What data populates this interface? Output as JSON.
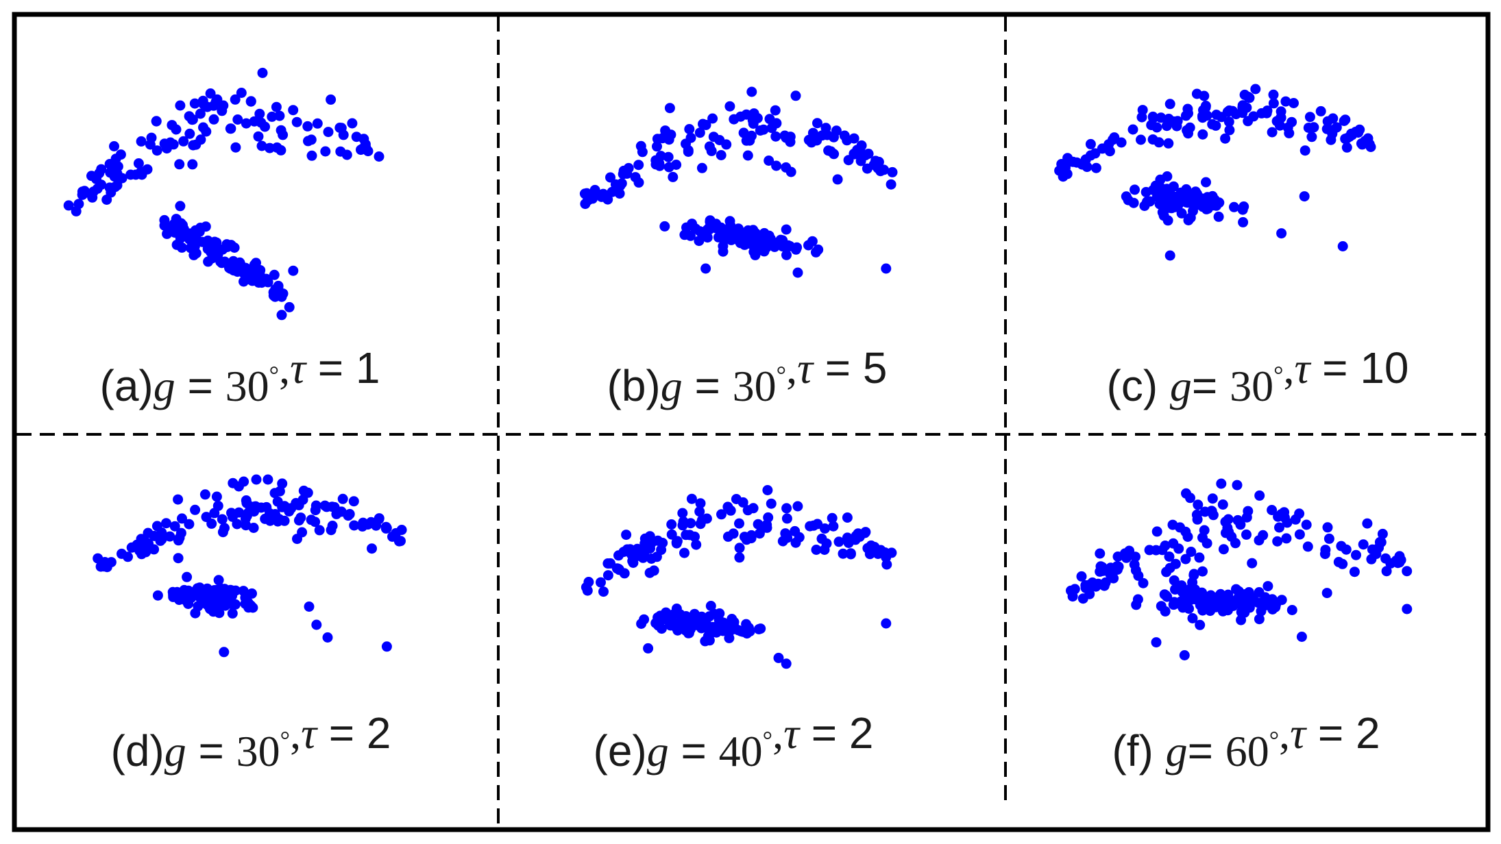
{
  "figure": {
    "frame_color": "#000000",
    "divider_color": "#000000",
    "point_color": "#0000ff"
  },
  "chart_data": [
    {
      "type": "scatter",
      "panel": "a",
      "caption": {
        "prefix": "(a)",
        "var1": "g",
        "eq1": " = ",
        "val1": "30",
        "deg": "°",
        "sep": ",",
        "var2": "τ",
        "eq2": " = ",
        "val2": "1"
      },
      "seed": 11,
      "clusters": [
        {
          "kind": "arc",
          "n": 120,
          "x0": 0.05,
          "x1": 0.88,
          "ypeak": 0.2,
          "yend": 0.55,
          "peak": 0.52,
          "spread": 0.045
        },
        {
          "kind": "line",
          "n": 95,
          "xa": 0.3,
          "ya": 0.59,
          "xb": 0.58,
          "yb": 0.86,
          "spread": 0.028
        }
      ],
      "extra": [
        [
          0.55,
          0.03
        ],
        [
          0.52,
          0.14
        ],
        [
          0.6,
          0.96
        ],
        [
          0.62,
          0.93
        ],
        [
          0.63,
          0.79
        ],
        [
          0.6,
          0.89
        ]
      ]
    },
    {
      "type": "scatter",
      "panel": "b",
      "caption": {
        "prefix": "(b)",
        "var1": "g",
        "eq1": " = ",
        "val1": "30",
        "deg": "°",
        "sep": ",",
        "var2": "τ",
        "eq2": " = ",
        "val2": "5"
      },
      "seed": 23,
      "clusters": [
        {
          "kind": "arc",
          "n": 125,
          "x0": 0.1,
          "x1": 0.9,
          "ypeak": 0.22,
          "yend": 0.58,
          "peak": 0.48,
          "spread": 0.05
        },
        {
          "kind": "blob",
          "n": 100,
          "cx": 0.5,
          "cy": 0.74,
          "rx": 0.14,
          "ry": 0.05,
          "rot": 0.3
        }
      ],
      "extra": [
        [
          0.53,
          0.03
        ],
        [
          0.88,
          0.89
        ],
        [
          0.65,
          0.91
        ],
        [
          0.41,
          0.89
        ],
        [
          0.62,
          0.7
        ]
      ]
    },
    {
      "type": "scatter",
      "panel": "c",
      "caption": {
        "prefix": "(c) ",
        "var1": "g",
        "eq1": "= ",
        "val1": "30",
        "deg": "°",
        "sep": ",",
        "var2": "τ",
        "eq2": " = ",
        "val2": "10"
      },
      "seed": 37,
      "clusters": [
        {
          "kind": "arc",
          "n": 125,
          "x0": 0.08,
          "x1": 0.9,
          "ypeak": 0.12,
          "yend": 0.45,
          "peak": 0.62,
          "spread": 0.05
        },
        {
          "kind": "blob",
          "n": 95,
          "cx": 0.4,
          "cy": 0.6,
          "rx": 0.11,
          "ry": 0.07,
          "rot": 0.25
        }
      ],
      "extra": [
        [
          0.72,
          0.58
        ],
        [
          0.82,
          0.85
        ],
        [
          0.66,
          0.78
        ],
        [
          0.37,
          0.9
        ],
        [
          0.56,
          0.72
        ]
      ]
    },
    {
      "type": "scatter",
      "panel": "d",
      "caption": {
        "prefix": "(d)",
        "var1": "g",
        "eq1": " = ",
        "val1": "30",
        "deg": "°",
        "sep": ",",
        "var2": "τ",
        "eq2": " = ",
        "val2": "2"
      },
      "seed": 41,
      "clusters": [
        {
          "kind": "arc",
          "n": 130,
          "x0": 0.08,
          "x1": 0.9,
          "ypeak": 0.15,
          "yend": 0.48,
          "peak": 0.6,
          "spread": 0.05
        },
        {
          "kind": "blob",
          "n": 100,
          "cx": 0.4,
          "cy": 0.65,
          "rx": 0.12,
          "ry": 0.06,
          "rot": 0.22
        }
      ],
      "extra": [
        [
          0.86,
          0.92
        ],
        [
          0.67,
          0.8
        ],
        [
          0.7,
          0.87
        ],
        [
          0.42,
          0.95
        ],
        [
          0.65,
          0.7
        ]
      ]
    },
    {
      "type": "scatter",
      "panel": "e",
      "caption": {
        "prefix": "(e)",
        "var1": "g",
        "eq1": " = ",
        "val1": "40",
        "deg": "°",
        "sep": ",",
        "var2": "τ",
        "eq2": " = ",
        "val2": "2"
      },
      "seed": 53,
      "clusters": [
        {
          "kind": "arc",
          "n": 130,
          "x0": 0.1,
          "x1": 0.9,
          "ypeak": 0.22,
          "yend": 0.56,
          "peak": 0.5,
          "spread": 0.05
        },
        {
          "kind": "blob",
          "n": 95,
          "cx": 0.4,
          "cy": 0.75,
          "rx": 0.13,
          "ry": 0.05,
          "rot": 0.18
        }
      ],
      "extra": [
        [
          0.52,
          0.16
        ],
        [
          0.88,
          0.75
        ],
        [
          0.62,
          0.96
        ],
        [
          0.6,
          0.93
        ],
        [
          0.26,
          0.88
        ]
      ]
    },
    {
      "type": "scatter",
      "panel": "f",
      "caption": {
        "prefix": "(f)  ",
        "var1": "g",
        "eq1": "= ",
        "val1": "60",
        "deg": "°",
        "sep": ",",
        "var2": "τ",
        "eq2": " = ",
        "val2": "2"
      },
      "seed": 67,
      "clusters": [
        {
          "kind": "arc",
          "n": 135,
          "x0": 0.08,
          "x1": 0.93,
          "ypeak": 0.28,
          "yend": 0.62,
          "peak": 0.5,
          "spread": 0.075
        },
        {
          "kind": "blob",
          "n": 110,
          "cx": 0.45,
          "cy": 0.66,
          "rx": 0.15,
          "ry": 0.07,
          "rot": 0.05
        }
      ],
      "extra": [
        [
          0.5,
          0.03
        ],
        [
          0.37,
          0.95
        ],
        [
          0.3,
          0.88
        ],
        [
          0.92,
          0.7
        ],
        [
          0.66,
          0.85
        ]
      ]
    }
  ]
}
